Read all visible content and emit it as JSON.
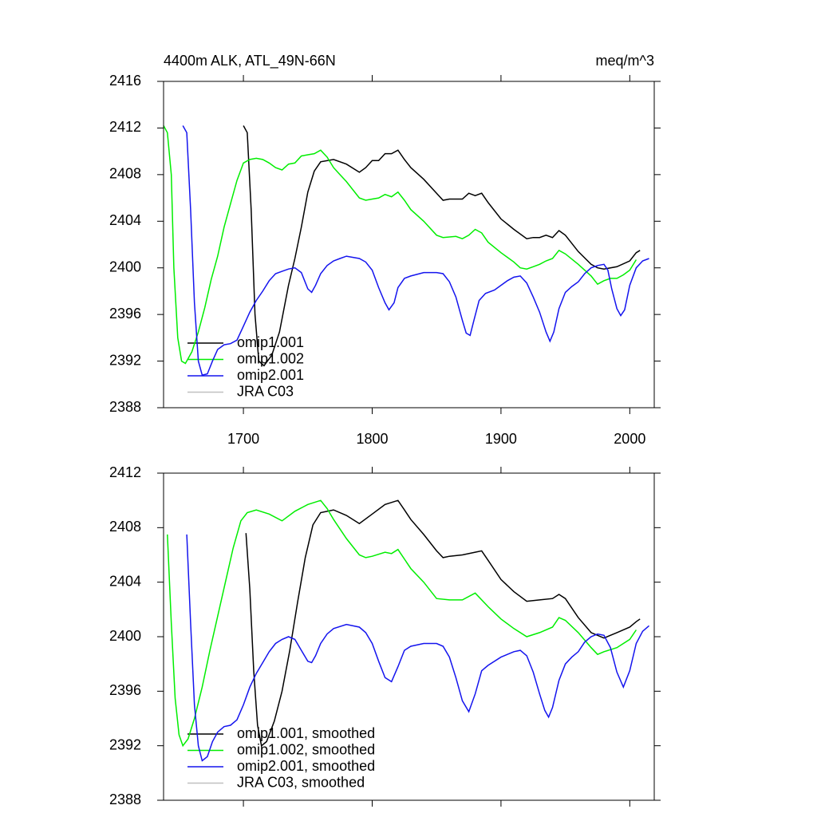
{
  "chart_data": [
    {
      "type": "line",
      "title": "4400m ALK, ATL_49N-66N",
      "units": "meq/m^3",
      "xlim": [
        1638,
        2019
      ],
      "xticks": [
        1700,
        1800,
        1900,
        2000
      ],
      "xtick_labels": true,
      "ylim": [
        2388,
        2416
      ],
      "yticks": [
        2388,
        2392,
        2396,
        2400,
        2404,
        2408,
        2412,
        2416
      ],
      "legend": "lower left",
      "series": [
        {
          "name": "omip1.001",
          "color": "#000000",
          "x": [
            1700,
            1703,
            1706,
            1709,
            1712,
            1716,
            1722,
            1728,
            1735,
            1740,
            1745,
            1750,
            1755,
            1760,
            1770,
            1780,
            1790,
            1795,
            1800,
            1805,
            1810,
            1815,
            1820,
            1825,
            1830,
            1840,
            1850,
            1855,
            1860,
            1870,
            1875,
            1880,
            1885,
            1890,
            1900,
            1910,
            1920,
            1925,
            1930,
            1935,
            1940,
            1945,
            1950,
            1960,
            1970,
            1975,
            1980,
            1990,
            2000,
            2005,
            2008
          ],
          "values": [
            2412.2,
            2411.6,
            2405,
            2396,
            2392,
            2391.6,
            2392.5,
            2394.5,
            2398.5,
            2400.8,
            2403.5,
            2406.5,
            2408.3,
            2409.1,
            2409.3,
            2408.9,
            2408.2,
            2408.6,
            2409.2,
            2409.2,
            2409.8,
            2409.8,
            2410.1,
            2409.3,
            2408.6,
            2407.6,
            2406.4,
            2405.8,
            2405.9,
            2405.9,
            2406.4,
            2406.2,
            2406.4,
            2405.6,
            2404.2,
            2403.3,
            2402.5,
            2402.6,
            2402.6,
            2402.8,
            2402.6,
            2403.2,
            2402.8,
            2401.4,
            2400.3,
            2400.0,
            2399.9,
            2400.1,
            2400.6,
            2401.3,
            2401.5
          ]
        },
        {
          "name": "omip1.002",
          "color": "#00ee00",
          "x": [
            1638,
            1641,
            1644,
            1646,
            1649,
            1652,
            1655,
            1660,
            1665,
            1670,
            1675,
            1680,
            1685,
            1690,
            1695,
            1700,
            1705,
            1710,
            1715,
            1720,
            1725,
            1730,
            1735,
            1740,
            1745,
            1750,
            1755,
            1760,
            1765,
            1770,
            1775,
            1780,
            1790,
            1795,
            1800,
            1805,
            1810,
            1815,
            1820,
            1825,
            1830,
            1840,
            1850,
            1855,
            1865,
            1870,
            1875,
            1880,
            1885,
            1890,
            1900,
            1910,
            1915,
            1920,
            1925,
            1930,
            1935,
            1940,
            1945,
            1950,
            1960,
            1970,
            1975,
            1980,
            1985,
            1990,
            1995,
            2000,
            2005
          ],
          "values": [
            2412.2,
            2411.6,
            2408,
            2400,
            2394,
            2392,
            2391.8,
            2392.8,
            2394.5,
            2396.6,
            2399.0,
            2401,
            2403.5,
            2405.5,
            2407.5,
            2409.0,
            2409.3,
            2409.4,
            2409.3,
            2409.0,
            2408.6,
            2408.4,
            2408.9,
            2409.0,
            2409.6,
            2409.7,
            2409.8,
            2410.1,
            2409.5,
            2408.6,
            2408.0,
            2407.4,
            2406.0,
            2405.8,
            2405.9,
            2406.0,
            2406.3,
            2406.1,
            2406.5,
            2405.8,
            2405.0,
            2404.0,
            2402.8,
            2402.6,
            2402.7,
            2402.5,
            2402.8,
            2403.3,
            2403.0,
            2402.2,
            2401.3,
            2400.5,
            2400.0,
            2399.9,
            2400.1,
            2400.3,
            2400.6,
            2400.8,
            2401.5,
            2401.2,
            2400.3,
            2399.3,
            2398.6,
            2398.9,
            2399.1,
            2399.1,
            2399.4,
            2399.8,
            2400.7
          ]
        },
        {
          "name": "omip2.001",
          "color": "#1414ee",
          "x": [
            1653,
            1656,
            1659,
            1662,
            1665,
            1668,
            1672,
            1676,
            1680,
            1685,
            1690,
            1695,
            1700,
            1705,
            1710,
            1715,
            1720,
            1725,
            1730,
            1735,
            1740,
            1745,
            1750,
            1753,
            1756,
            1760,
            1765,
            1770,
            1775,
            1780,
            1790,
            1795,
            1800,
            1805,
            1810,
            1813,
            1817,
            1820,
            1825,
            1830,
            1840,
            1850,
            1855,
            1860,
            1865,
            1870,
            1873,
            1876,
            1879,
            1883,
            1888,
            1895,
            1900,
            1905,
            1910,
            1915,
            1920,
            1925,
            1930,
            1935,
            1938,
            1941,
            1945,
            1950,
            1955,
            1960,
            1965,
            1970,
            1975,
            1980,
            1983,
            1986,
            1990,
            1993,
            1996,
            2000,
            2005,
            2010,
            2015
          ],
          "values": [
            2412.2,
            2411.6,
            2405,
            2397,
            2392,
            2390.8,
            2390.9,
            2392,
            2393.0,
            2393.4,
            2393.5,
            2393.8,
            2395.0,
            2396.2,
            2397.2,
            2398.0,
            2398.9,
            2399.5,
            2399.7,
            2399.9,
            2400.0,
            2399.6,
            2398.2,
            2397.9,
            2398.5,
            2399.5,
            2400.2,
            2400.6,
            2400.8,
            2401.0,
            2400.8,
            2400.5,
            2399.8,
            2398.3,
            2397.0,
            2396.4,
            2397.0,
            2398.3,
            2399.1,
            2399.3,
            2399.6,
            2399.6,
            2399.5,
            2398.8,
            2397.5,
            2395.5,
            2394.4,
            2394.2,
            2395.5,
            2397.2,
            2397.8,
            2398.1,
            2398.5,
            2398.9,
            2399.2,
            2399.3,
            2398.7,
            2397.5,
            2396.2,
            2394.5,
            2393.7,
            2394.5,
            2396.5,
            2397.9,
            2398.4,
            2398.8,
            2399.5,
            2400.0,
            2400.2,
            2400.3,
            2399.8,
            2398.2,
            2396.5,
            2395.9,
            2396.4,
            2398.5,
            2400.0,
            2400.6,
            2400.8
          ]
        },
        {
          "name": "JRA C03",
          "color": "#c0c0c0",
          "x": [],
          "values": []
        }
      ]
    },
    {
      "type": "line",
      "xlim": [
        1638,
        2019
      ],
      "xticks": [
        1700,
        1800,
        1900,
        2000
      ],
      "xtick_labels": false,
      "ylim": [
        2388,
        2412
      ],
      "yticks": [
        2388,
        2392,
        2396,
        2400,
        2404,
        2408,
        2412
      ],
      "legend": "lower left",
      "series": [
        {
          "name": "omip1.001, smoothed",
          "color": "#000000",
          "x": [
            1702,
            1705,
            1708,
            1711,
            1714,
            1718,
            1724,
            1730,
            1736,
            1742,
            1748,
            1754,
            1760,
            1770,
            1780,
            1790,
            1800,
            1810,
            1820,
            1825,
            1830,
            1840,
            1850,
            1855,
            1860,
            1870,
            1880,
            1885,
            1890,
            1900,
            1910,
            1920,
            1930,
            1940,
            1945,
            1950,
            1960,
            1970,
            1980,
            1990,
            2000,
            2005,
            2008
          ],
          "values": [
            2407.6,
            2403.5,
            2397.5,
            2393.5,
            2392.0,
            2392.3,
            2393.8,
            2396.0,
            2399.0,
            2402.5,
            2405.8,
            2408.2,
            2409.1,
            2409.3,
            2408.9,
            2408.3,
            2409.0,
            2409.7,
            2410.0,
            2409.3,
            2408.6,
            2407.5,
            2406.3,
            2405.8,
            2405.9,
            2406.0,
            2406.2,
            2406.3,
            2405.6,
            2404.2,
            2403.3,
            2402.6,
            2402.7,
            2402.8,
            2403.1,
            2402.8,
            2401.4,
            2400.3,
            2399.9,
            2400.3,
            2400.7,
            2401.1,
            2401.3
          ]
        },
        {
          "name": "omip1.002, smoothed",
          "color": "#00ee00",
          "x": [
            1641,
            1644,
            1647,
            1650,
            1653,
            1657,
            1662,
            1668,
            1674,
            1680,
            1686,
            1692,
            1698,
            1703,
            1710,
            1720,
            1730,
            1740,
            1750,
            1760,
            1765,
            1770,
            1780,
            1790,
            1795,
            1800,
            1810,
            1815,
            1820,
            1830,
            1840,
            1850,
            1860,
            1870,
            1880,
            1890,
            1900,
            1910,
            1920,
            1930,
            1940,
            1945,
            1950,
            1960,
            1970,
            1975,
            1980,
            1990,
            2000,
            2005
          ],
          "values": [
            2407.5,
            2401,
            2395.5,
            2392.8,
            2392.0,
            2392.5,
            2394.0,
            2396.3,
            2399.0,
            2401.5,
            2404.0,
            2406.5,
            2408.5,
            2409.1,
            2409.3,
            2409.0,
            2408.5,
            2409.2,
            2409.7,
            2410.0,
            2409.4,
            2408.6,
            2407.2,
            2406.0,
            2405.8,
            2405.9,
            2406.2,
            2406.1,
            2406.4,
            2405.0,
            2404.0,
            2402.8,
            2402.7,
            2402.7,
            2403.2,
            2402.2,
            2401.3,
            2400.6,
            2400.0,
            2400.3,
            2400.7,
            2401.4,
            2401.2,
            2400.3,
            2399.2,
            2398.7,
            2398.9,
            2399.2,
            2399.8,
            2400.5
          ]
        },
        {
          "name": "omip2.001, smoothed",
          "color": "#1414ee",
          "x": [
            1656,
            1659,
            1662,
            1665,
            1668,
            1672,
            1676,
            1680,
            1685,
            1690,
            1695,
            1700,
            1705,
            1710,
            1715,
            1720,
            1725,
            1730,
            1735,
            1740,
            1745,
            1750,
            1753,
            1756,
            1760,
            1765,
            1770,
            1780,
            1790,
            1795,
            1800,
            1805,
            1810,
            1815,
            1820,
            1825,
            1830,
            1840,
            1850,
            1855,
            1860,
            1865,
            1870,
            1875,
            1880,
            1885,
            1890,
            1900,
            1910,
            1915,
            1920,
            1925,
            1930,
            1934,
            1937,
            1940,
            1945,
            1950,
            1955,
            1960,
            1965,
            1970,
            1975,
            1980,
            1985,
            1990,
            1995,
            2000,
            2005,
            2010,
            2015
          ],
          "values": [
            2407.5,
            2401,
            2395,
            2392,
            2390.9,
            2391.2,
            2392.3,
            2393.0,
            2393.4,
            2393.5,
            2393.9,
            2395.0,
            2396.3,
            2397.3,
            2398.1,
            2398.9,
            2399.5,
            2399.8,
            2400.0,
            2399.8,
            2399.0,
            2398.2,
            2398.1,
            2398.6,
            2399.5,
            2400.2,
            2400.6,
            2400.9,
            2400.7,
            2400.3,
            2399.5,
            2398.2,
            2397.0,
            2396.7,
            2397.8,
            2399.0,
            2399.3,
            2399.5,
            2399.5,
            2399.3,
            2398.5,
            2397.0,
            2395.3,
            2394.5,
            2395.8,
            2397.5,
            2397.9,
            2398.5,
            2398.9,
            2399.0,
            2398.6,
            2397.4,
            2395.8,
            2394.6,
            2394.1,
            2394.8,
            2396.8,
            2398.0,
            2398.5,
            2398.9,
            2399.6,
            2400.0,
            2400.2,
            2400.1,
            2399.2,
            2397.4,
            2396.3,
            2397.5,
            2399.5,
            2400.4,
            2400.8
          ]
        },
        {
          "name": "JRA C03, smoothed",
          "color": "#c0c0c0",
          "x": [],
          "values": []
        }
      ]
    }
  ]
}
